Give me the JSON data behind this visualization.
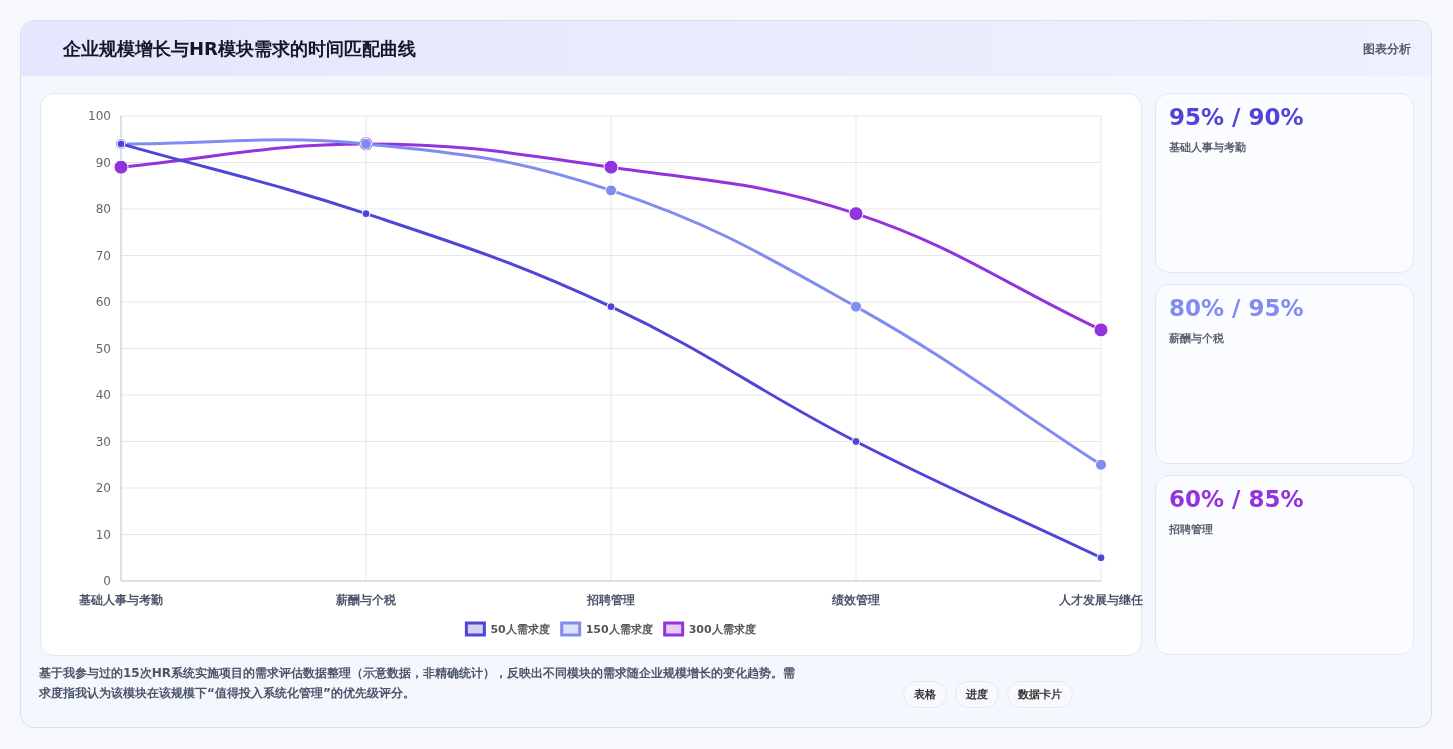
{
  "chart_data": [
    {
      "type": "line",
      "title": "企业规模增长与HR模块需求的时间匹配曲线",
      "categories": [
        "基础人事与考勤",
        "薪酬与个税",
        "招聘管理",
        "绩效管理",
        "人才发展与继任"
      ],
      "series": [
        {
          "name": "50人需求度",
          "color": "#4f46d8",
          "values": [
            94,
            79,
            59,
            30,
            5
          ]
        },
        {
          "name": "150人需求度",
          "color": "#818cf0",
          "values": [
            94,
            94,
            84,
            59,
            25
          ]
        },
        {
          "name": "300人需求度",
          "color": "#9333dd",
          "values": [
            89,
            94,
            89,
            79,
            54
          ]
        }
      ],
      "ylim": [
        0,
        100
      ],
      "yticks": [
        0,
        10,
        20,
        30,
        40,
        50,
        60,
        70,
        80,
        90,
        100
      ],
      "grid": true,
      "legend": "bottom",
      "marker": "circle",
      "line_style": "solid",
      "annotations": [
        "图表分析",
        "基于我参与过的15次HR系统实施项目的需求评估数据整理（示意数据，非精确统计），反映出不同模块的需求随企业规模增长的变化趋势。需求度指我认为该模块在该规模下“值得投入系统化管理”的优先级评分。",
        "表格",
        "进度",
        "数据卡片"
      ]
    },
    {
      "type": "other",
      "annotations": [
        "95% / 90%",
        "基础人事与考勤",
        "80% / 95%",
        "薪酬与个税",
        "60% / 85%",
        "招聘管理"
      ],
      "colors": [
        "#4f46d8",
        "#818cf0",
        "#9333dd"
      ]
    }
  ]
}
